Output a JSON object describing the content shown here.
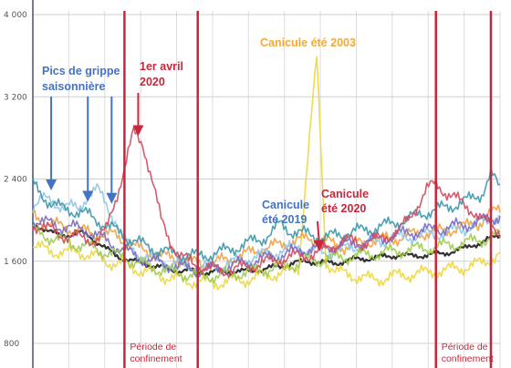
{
  "chart_data": {
    "type": "line",
    "title": "",
    "xlabel": "",
    "ylabel": "",
    "ylim": [
      700,
      4000
    ],
    "xlim": [
      1,
      52
    ],
    "grid": true,
    "y_ticks": [
      800,
      1600,
      2400,
      3200,
      4000
    ],
    "y_tick_labels": [
      "800",
      "1 600",
      "2 400",
      "3 200",
      "4 000"
    ],
    "series": [
      {
        "color": "#333333",
        "values": [
          1960,
          1930,
          1880,
          1850,
          1860,
          1880,
          1850,
          1790,
          1720,
          1660,
          1620,
          1600,
          1580,
          1560,
          1540,
          1520,
          1505,
          1510,
          1500,
          1490,
          1500,
          1495,
          1505,
          1500,
          1510,
          1520,
          1535,
          1550,
          1570,
          1590,
          1600,
          1590,
          1585,
          1580,
          1600,
          1615,
          1625,
          1630,
          1640,
          1650,
          1660,
          1650,
          1655,
          1660,
          1665,
          1680,
          1700,
          1720,
          1760,
          1780,
          1820,
          1860
        ]
      },
      {
        "color": "#ecd73c",
        "values": [
          1750,
          1720,
          1700,
          1690,
          1680,
          1700,
          1660,
          1640,
          1600,
          1580,
          1560,
          1540,
          1500,
          1480,
          1460,
          1440,
          1420,
          1410,
          1400,
          1390,
          1390,
          1400,
          1410,
          1420,
          1430,
          1460,
          1470,
          1480,
          1500,
          1540,
          2600,
          3580,
          1600,
          1500,
          1480,
          1460,
          1440,
          1420,
          1430,
          1450,
          1460,
          1470,
          1480,
          1490,
          1500,
          1510,
          1530,
          1540,
          1560,
          1580,
          1620,
          1680
        ]
      },
      {
        "color": "#f0a040",
        "values": [
          2050,
          2000,
          1960,
          1940,
          1920,
          1900,
          1880,
          1860,
          1860,
          1850,
          1800,
          1750,
          1700,
          1680,
          1650,
          1630,
          1620,
          1600,
          1580,
          1570,
          1590,
          1610,
          1640,
          1660,
          1690,
          1720,
          1740,
          1760,
          1790,
          1800,
          1820,
          1810,
          1790,
          1760,
          1740,
          1760,
          1780,
          1800,
          1810,
          1820,
          1830,
          1850,
          1870,
          1880,
          1890,
          1900,
          1920,
          1930,
          1960,
          1990,
          2050,
          2120
        ]
      },
      {
        "color": "#8fc7e8",
        "values": [
          2150,
          2200,
          2180,
          2150,
          2130,
          2100,
          2250,
          2300,
          2150,
          2000,
          1800,
          1700,
          1650,
          1620,
          1600,
          1580,
          1560,
          1550,
          1540,
          1545,
          1555,
          1570,
          1590,
          1610,
          1640,
          1660,
          1680,
          1700,
          1720,
          1740,
          1700,
          1690,
          1680,
          1700,
          1720,
          1740,
          1760,
          1780,
          1800,
          1820,
          1830,
          1840,
          1850,
          1860,
          1870,
          1880,
          1900,
          1920,
          1950,
          1980,
          2000,
          2050
        ]
      },
      {
        "color": "#3a97a8",
        "values": [
          2350,
          2250,
          2160,
          2120,
          2100,
          2080,
          2050,
          2000,
          1950,
          1900,
          1850,
          1800,
          1760,
          1730,
          1700,
          1680,
          1670,
          1660,
          1650,
          1660,
          1680,
          1700,
          1730,
          1760,
          1790,
          1820,
          1870,
          1960,
          1900,
          1880,
          1860,
          1840,
          1830,
          1850,
          1870,
          1890,
          1900,
          1920,
          1940,
          1960,
          1990,
          2010,
          2050,
          2080,
          2100,
          2120,
          2150,
          2180,
          2210,
          2260,
          2450,
          2300
        ]
      },
      {
        "color": "#7a6cc2",
        "values": [
          2000,
          1980,
          1960,
          1940,
          1930,
          1920,
          1900,
          1850,
          1800,
          1750,
          1700,
          1660,
          1620,
          1600,
          1580,
          1560,
          1540,
          1530,
          1520,
          1515,
          1525,
          1540,
          1560,
          1580,
          1600,
          1620,
          1640,
          1660,
          1680,
          1700,
          1720,
          1730,
          1740,
          1750,
          1760,
          1770,
          1780,
          1800,
          1820,
          1840,
          1860,
          1880,
          1890,
          1900,
          1910,
          1920,
          1940,
          1950,
          1970,
          1990,
          2010,
          2050
        ]
      },
      {
        "color": "#9fcb4f",
        "values": [
          1900,
          1860,
          1830,
          1800,
          1780,
          1760,
          1740,
          1710,
          1690,
          1660,
          1630,
          1600,
          1570,
          1540,
          1520,
          1500,
          1480,
          1470,
          1460,
          1455,
          1460,
          1470,
          1480,
          1490,
          1500,
          1520,
          1530,
          1545,
          1560,
          1580,
          1600,
          1610,
          1620,
          1630,
          1640,
          1650,
          1660,
          1670,
          1680,
          1690,
          1700,
          1710,
          1720,
          1730,
          1740,
          1750,
          1760,
          1780,
          1790,
          1810,
          1830,
          1860
        ]
      },
      {
        "color": "#d04a5c",
        "values": [
          1950,
          1940,
          1900,
          1860,
          1840,
          1830,
          1820,
          1800,
          1900,
          2200,
          2500,
          2850,
          2750,
          2400,
          2000,
          1800,
          1650,
          1600,
          1560,
          1530,
          1520,
          1510,
          1520,
          1540,
          1560,
          1580,
          1600,
          1620,
          1640,
          1650,
          1660,
          1680,
          1720,
          1760,
          1800,
          1790,
          1780,
          1800,
          1820,
          1860,
          1900,
          2000,
          2150,
          2300,
          2350,
          2280,
          2220,
          2150,
          2100,
          2000,
          1950,
          1900
        ]
      }
    ],
    "periods": [
      {
        "label": [
          "Période de",
          "confinement"
        ],
        "start_week": 11,
        "end_week": 19
      },
      {
        "label": [
          "Période de",
          "confinement"
        ],
        "start_week": 45,
        "end_week": 51
      }
    ],
    "annotations": [
      {
        "id": "grippe",
        "lines": [
          "Pics de grippe",
          "saisonnière"
        ],
        "color": "#4472c4",
        "arrows_to": [
          {
            "week": 3,
            "value": 2310
          },
          {
            "week": 7,
            "value": 2200
          },
          {
            "week": 9.6,
            "value": 2180
          }
        ]
      },
      {
        "id": "avril",
        "lines": [
          "1er avril",
          "2020"
        ],
        "color": "#c8263a",
        "arrows_to": [
          {
            "week": 12.5,
            "value": 2840
          }
        ]
      },
      {
        "id": "canicule2003",
        "lines": [
          "Canicule été 2003"
        ],
        "color": "#f2a936",
        "arrows_to": []
      },
      {
        "id": "canicule2019",
        "lines": [
          "Canicule",
          "été 2019"
        ],
        "color": "#4472c4",
        "arrows_to": []
      },
      {
        "id": "canicule2020",
        "lines": [
          "Canicule",
          "été 2020"
        ],
        "color": "#c8263a",
        "arrows_to": [
          {
            "week": 32.3,
            "value": 1720
          }
        ]
      }
    ]
  }
}
